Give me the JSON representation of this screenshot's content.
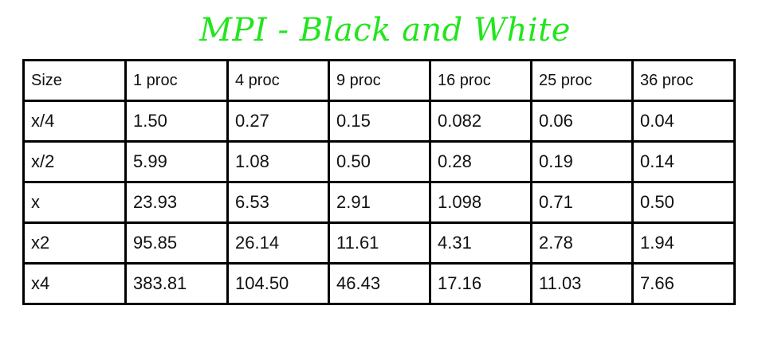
{
  "title": "MPI - Black and White",
  "title_color": "#22e51e",
  "table": {
    "header": [
      "Size",
      "1 proc",
      "4 proc",
      "9 proc",
      "16 proc",
      "25 proc",
      "36 proc"
    ],
    "rows": [
      [
        "x/4",
        "1.50",
        "0.27",
        " 0.15",
        "0.082",
        "0.06",
        "0.04"
      ],
      [
        "x/2",
        "5.99",
        "1.08",
        " 0.50",
        "0.28",
        "0.19",
        "0.14"
      ],
      [
        "x",
        "23.93",
        "6.53",
        "2.91",
        "1.098",
        "0.71",
        "0.50"
      ],
      [
        "x2",
        "95.85",
        "26.14",
        "11.61",
        "4.31",
        "2.78",
        "1.94"
      ],
      [
        "x4",
        "383.81",
        "104.50",
        "46.43",
        "17.16",
        "11.03",
        "7.66"
      ]
    ]
  }
}
